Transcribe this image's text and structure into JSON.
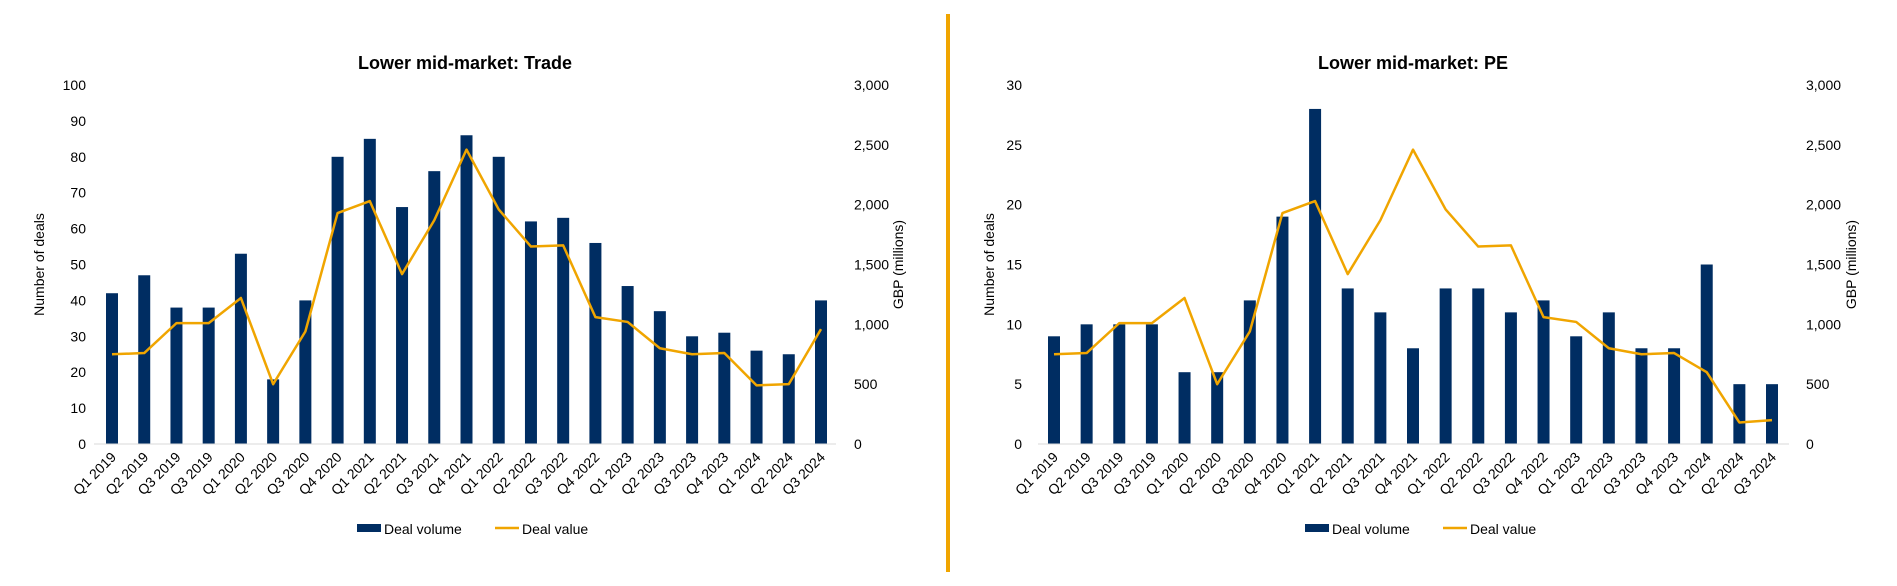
{
  "colors": {
    "volume": "#002D62",
    "value": "#F0A500",
    "divider": "#F0A500"
  },
  "chart_data": [
    {
      "type": "bar+line",
      "title": "Lower mid-market: Trade",
      "categories": [
        "Q1 2019",
        "Q2 2019",
        "Q3 2019",
        "Q3 2019",
        "Q1 2020",
        "Q2 2020",
        "Q3 2020",
        "Q4 2020",
        "Q1 2021",
        "Q2 2021",
        "Q3 2021",
        "Q4 2021",
        "Q1 2022",
        "Q2 2022",
        "Q3 2022",
        "Q4 2022",
        "Q1 2023",
        "Q2 2023",
        "Q3 2023",
        "Q4 2023",
        "Q1 2024",
        "Q2 2024",
        "Q3 2024"
      ],
      "ylabel": "Number of deals",
      "y2label": "GBP (millions)",
      "ylim": [
        0,
        100
      ],
      "yticks": [
        "0",
        "10",
        "20",
        "30",
        "40",
        "50",
        "60",
        "70",
        "80",
        "90",
        "100"
      ],
      "y2lim": [
        0,
        3000
      ],
      "y2ticks": [
        "0",
        "500",
        "1,000",
        "1,500",
        "2,000",
        "2,500",
        "3,000"
      ],
      "legend": [
        "Deal volume",
        "Deal value"
      ],
      "legend_position": "bottom",
      "series": [
        {
          "name": "Deal volume",
          "type": "bar",
          "axis": "left",
          "values": [
            42,
            47,
            38,
            38,
            53,
            18,
            40,
            80,
            85,
            66,
            76,
            86,
            80,
            62,
            63,
            56,
            44,
            37,
            30,
            31,
            26,
            25,
            40
          ]
        },
        {
          "name": "Deal value",
          "type": "line",
          "axis": "right",
          "values": [
            750,
            760,
            1010,
            1010,
            1220,
            500,
            940,
            1930,
            2030,
            1420,
            1870,
            2460,
            1960,
            1650,
            1660,
            1060,
            1020,
            800,
            750,
            760,
            490,
            500,
            960
          ]
        }
      ]
    },
    {
      "type": "bar+line",
      "title": "Lower mid-market: PE",
      "categories": [
        "Q1 2019",
        "Q2 2019",
        "Q3 2019",
        "Q3 2019",
        "Q1 2020",
        "Q2 2020",
        "Q3 2020",
        "Q4 2020",
        "Q1 2021",
        "Q2 2021",
        "Q3 2021",
        "Q4 2021",
        "Q1 2022",
        "Q2 2022",
        "Q3 2022",
        "Q4 2022",
        "Q1 2023",
        "Q2 2023",
        "Q3 2023",
        "Q4 2023",
        "Q1 2024",
        "Q2 2024",
        "Q3 2024"
      ],
      "ylabel": "Number of deals",
      "y2label": "GBP (millions)",
      "ylim": [
        0,
        30
      ],
      "yticks": [
        "0",
        "5",
        "10",
        "15",
        "20",
        "25",
        "30"
      ],
      "y2lim": [
        0,
        3000
      ],
      "y2ticks": [
        "0",
        "500",
        "1,000",
        "1,500",
        "2,000",
        "2,500",
        "3,000"
      ],
      "legend": [
        "Deal volume",
        "Deal value"
      ],
      "legend_position": "bottom",
      "series": [
        {
          "name": "Deal volume",
          "type": "bar",
          "axis": "left",
          "values": [
            9,
            10,
            10,
            10,
            6,
            6,
            12,
            19,
            28,
            13,
            11,
            8,
            13,
            13,
            11,
            12,
            9,
            11,
            8,
            8,
            15,
            5,
            5
          ]
        },
        {
          "name": "Deal value",
          "type": "line",
          "axis": "right",
          "values": [
            750,
            760,
            1010,
            1010,
            1220,
            500,
            940,
            1930,
            2030,
            1420,
            1870,
            2460,
            1960,
            1650,
            1660,
            1060,
            1020,
            800,
            750,
            760,
            600,
            180,
            200
          ]
        }
      ]
    }
  ]
}
